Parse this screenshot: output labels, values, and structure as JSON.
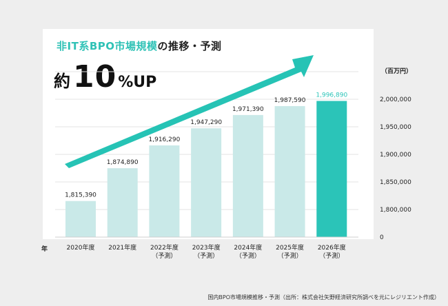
{
  "title": {
    "accent": "非IT系BPO市場規模",
    "rest": "の推移・予測"
  },
  "headline": {
    "prefix": "約",
    "number": "10",
    "suffix": "%UP"
  },
  "footer_note": "国内BPO市場規模推移・予測（出所：株式会社矢野経済研究所調べを元にレジリエント作成）",
  "colors": {
    "bar": "#c9e9e8",
    "highlight": "#2bc4b8",
    "arrow": "#26c3b5",
    "highlight_label": "#2bc4b8"
  },
  "chart_data": {
    "type": "bar",
    "categories": [
      [
        "2020年度"
      ],
      [
        "2021年度"
      ],
      [
        "2022年度",
        "（予測）"
      ],
      [
        "2023年度",
        "（予測）"
      ],
      [
        "2024年度",
        "（予測）"
      ],
      [
        "2025年度",
        "（予測）"
      ],
      [
        "2026年度",
        "（予測）"
      ]
    ],
    "values": [
      1815390,
      1874890,
      1916290,
      1947290,
      1971390,
      1987590,
      1996890
    ],
    "value_labels": [
      "1,815,390",
      "1,874,890",
      "1,916,290",
      "1,947,290",
      "1,971,390",
      "1,987,590",
      "1,996,890"
    ],
    "highlight_index": 6,
    "y_axis_unit": "（百万円）",
    "x_axis_label": "年",
    "y_ticks": [
      {
        "value": 2000000,
        "label": "2,000,000"
      },
      {
        "value": 1950000,
        "label": "1,950,000"
      },
      {
        "value": 1900000,
        "label": "1,900,000"
      },
      {
        "value": 1850000,
        "label": "1,850,000"
      },
      {
        "value": 1800000,
        "label": "1,800,000"
      }
    ],
    "y_zero_label": "0",
    "ylim": [
      1750000,
      2000000
    ],
    "axis_break": true,
    "grid": true,
    "legend": "none"
  }
}
